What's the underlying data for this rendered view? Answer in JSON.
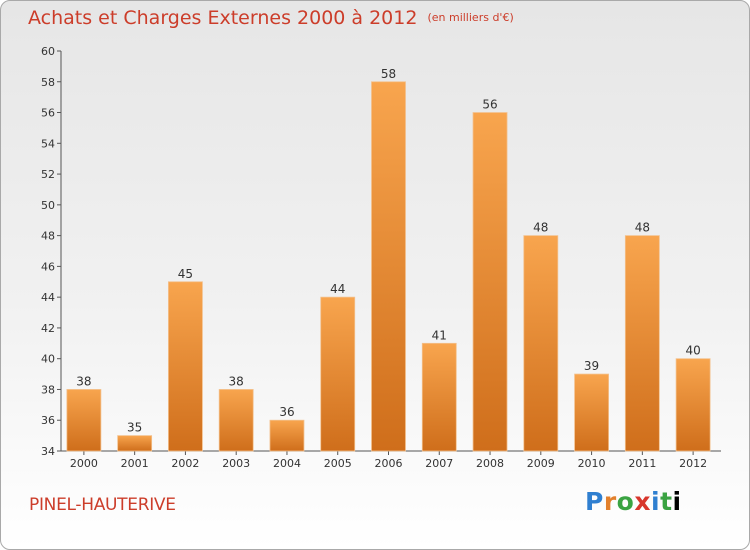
{
  "header": {
    "title": "Achats et Charges Externes 2000 à 2012",
    "subtitle": "(en milliers d'€)"
  },
  "footer": {
    "location": "PINEL-HAUTERIVE",
    "brand": "Proxiti"
  },
  "chart_data": {
    "type": "bar",
    "categories": [
      "2000",
      "2001",
      "2002",
      "2003",
      "2004",
      "2005",
      "2006",
      "2007",
      "2008",
      "2009",
      "2010",
      "2011",
      "2012"
    ],
    "values": [
      38,
      35,
      45,
      38,
      36,
      44,
      58,
      41,
      56,
      48,
      39,
      48,
      40
    ],
    "title": "Achats et Charges Externes 2000 à 2012",
    "subtitle": "(en milliers d'€)",
    "xlabel": "",
    "ylabel": "",
    "ylim": [
      34,
      60
    ],
    "yticks": [
      34,
      36,
      38,
      40,
      42,
      44,
      46,
      48,
      50,
      52,
      54,
      56,
      58,
      60
    ],
    "grid": false,
    "legend": "none",
    "data_labels": true,
    "colors": {
      "bar_light": "#f8a54e",
      "bar_dark": "#cf6e1b",
      "title": "#cc3d2a",
      "axis": "#555555"
    }
  }
}
